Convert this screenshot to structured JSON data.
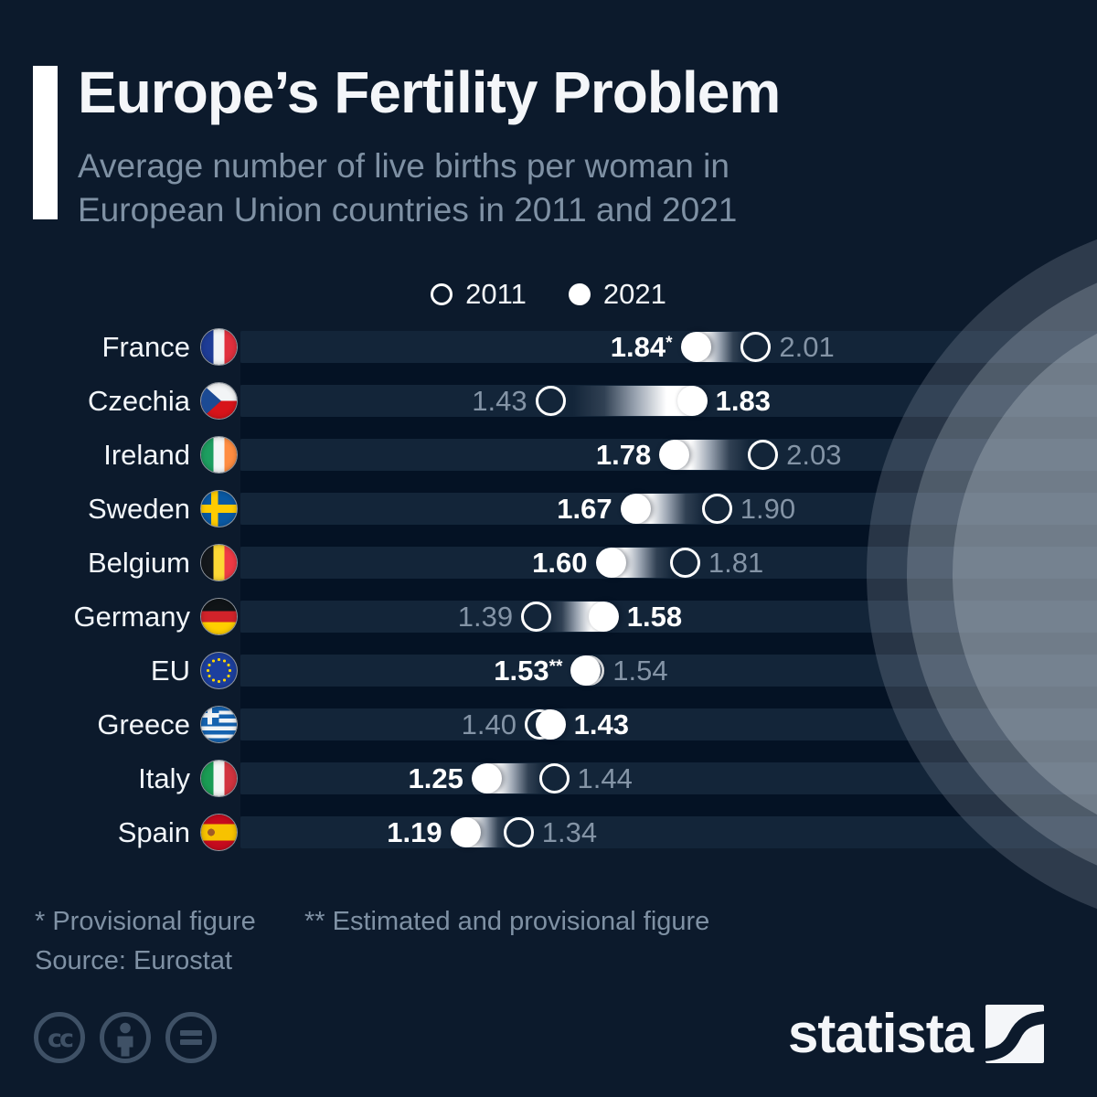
{
  "header": {
    "title": "Europe’s Fertility Problem",
    "subtitle_line1": "Average number of live births per woman in",
    "subtitle_line2": "European Union countries in 2011 and 2021"
  },
  "legend": {
    "items": [
      {
        "label": "2011",
        "style": "open"
      },
      {
        "label": "2021",
        "style": "filled"
      }
    ]
  },
  "chart_data": {
    "type": "dumbbell",
    "title": "Europe's Fertility Problem",
    "unit": "average number of live births per woman",
    "series_years": [
      "2011",
      "2021"
    ],
    "xlim": [
      1.1,
      2.1
    ],
    "rows": [
      {
        "country": "France",
        "flag": "france",
        "v2011": 2.01,
        "v2021": 1.84,
        "label2011": "2.01",
        "label2021": "1.84",
        "suffix": "*"
      },
      {
        "country": "Czechia",
        "flag": "czechia",
        "v2011": 1.43,
        "v2021": 1.83,
        "label2011": "1.43",
        "label2021": "1.83",
        "suffix": ""
      },
      {
        "country": "Ireland",
        "flag": "ireland",
        "v2011": 2.03,
        "v2021": 1.78,
        "label2011": "2.03",
        "label2021": "1.78",
        "suffix": ""
      },
      {
        "country": "Sweden",
        "flag": "sweden",
        "v2011": 1.9,
        "v2021": 1.67,
        "label2011": "1.90",
        "label2021": "1.67",
        "suffix": ""
      },
      {
        "country": "Belgium",
        "flag": "belgium",
        "v2011": 1.81,
        "v2021": 1.6,
        "label2011": "1.81",
        "label2021": "1.60",
        "suffix": ""
      },
      {
        "country": "Germany",
        "flag": "germany",
        "v2011": 1.39,
        "v2021": 1.58,
        "label2011": "1.39",
        "label2021": "1.58",
        "suffix": ""
      },
      {
        "country": "EU",
        "flag": "eu",
        "v2011": 1.54,
        "v2021": 1.53,
        "label2011": "1.54",
        "label2021": "1.53",
        "suffix": "**"
      },
      {
        "country": "Greece",
        "flag": "greece",
        "v2011": 1.4,
        "v2021": 1.43,
        "label2011": "1.40",
        "label2021": "1.43",
        "suffix": ""
      },
      {
        "country": "Italy",
        "flag": "italy",
        "v2011": 1.44,
        "v2021": 1.25,
        "label2011": "1.44",
        "label2021": "1.25",
        "suffix": ""
      },
      {
        "country": "Spain",
        "flag": "spain",
        "v2011": 1.34,
        "v2021": 1.19,
        "label2011": "1.34",
        "label2021": "1.19",
        "suffix": ""
      }
    ]
  },
  "footnotes": {
    "note1": "* Provisional figure",
    "note2": "** Estimated and provisional figure",
    "source": "Source: Eurostat"
  },
  "branding": {
    "logo_text": "statista",
    "license_icons": [
      "cc-icon",
      "attribution-person-icon",
      "equals-icon"
    ]
  },
  "colors": {
    "background": "#0c1a2c",
    "row_stripe": "#132539",
    "row_gap": "#041224",
    "dot": "#ffffff",
    "muted_text": "#8494a6"
  }
}
